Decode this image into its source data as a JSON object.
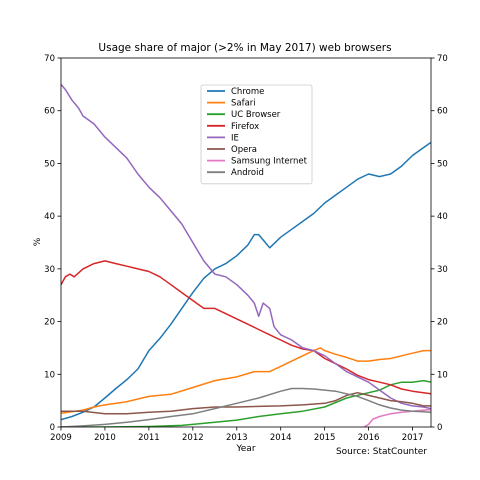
{
  "chart_data": {
    "type": "line",
    "title": "Usage share of major (>2% in May 2017) web browsers",
    "xlabel": "Year",
    "ylabel": "%",
    "source": "Source: StatCounter",
    "xlim": [
      2009.0,
      2017.42
    ],
    "ylim": [
      0,
      70
    ],
    "x_ticks": [
      2009,
      2010,
      2011,
      2012,
      2013,
      2014,
      2015,
      2016,
      2017
    ],
    "y_ticks": [
      0,
      10,
      20,
      30,
      40,
      50,
      60,
      70
    ],
    "secondary_y_axis": true,
    "grid": false,
    "legend_position": "upper center",
    "series": [
      {
        "name": "Chrome",
        "color": "#1f77b4",
        "points": [
          [
            2009.0,
            1.4
          ],
          [
            2009.25,
            2.0
          ],
          [
            2009.5,
            2.8
          ],
          [
            2009.75,
            3.8
          ],
          [
            2010.0,
            5.5
          ],
          [
            2010.25,
            7.3
          ],
          [
            2010.5,
            9.0
          ],
          [
            2010.75,
            11.0
          ],
          [
            2011.0,
            14.5
          ],
          [
            2011.25,
            16.8
          ],
          [
            2011.5,
            19.5
          ],
          [
            2011.75,
            22.5
          ],
          [
            2012.0,
            25.5
          ],
          [
            2012.25,
            28.2
          ],
          [
            2012.5,
            30.0
          ],
          [
            2012.75,
            31.0
          ],
          [
            2013.0,
            32.5
          ],
          [
            2013.25,
            34.5
          ],
          [
            2013.4,
            36.5
          ],
          [
            2013.5,
            36.5
          ],
          [
            2013.6,
            35.5
          ],
          [
            2013.75,
            34.0
          ],
          [
            2014.0,
            36.0
          ],
          [
            2014.25,
            37.5
          ],
          [
            2014.5,
            39.0
          ],
          [
            2014.75,
            40.5
          ],
          [
            2015.0,
            42.5
          ],
          [
            2015.25,
            44.0
          ],
          [
            2015.5,
            45.5
          ],
          [
            2015.75,
            47.0
          ],
          [
            2016.0,
            48.0
          ],
          [
            2016.25,
            47.5
          ],
          [
            2016.5,
            48.0
          ],
          [
            2016.75,
            49.5
          ],
          [
            2017.0,
            51.5
          ],
          [
            2017.25,
            53.0
          ],
          [
            2017.42,
            54.0
          ]
        ]
      },
      {
        "name": "Safari",
        "color": "#ff7f0e",
        "points": [
          [
            2009.0,
            2.6
          ],
          [
            2009.5,
            3.2
          ],
          [
            2009.75,
            3.8
          ],
          [
            2010.0,
            4.2
          ],
          [
            2010.5,
            4.8
          ],
          [
            2011.0,
            5.8
          ],
          [
            2011.5,
            6.2
          ],
          [
            2012.0,
            7.5
          ],
          [
            2012.5,
            8.8
          ],
          [
            2013.0,
            9.5
          ],
          [
            2013.4,
            10.5
          ],
          [
            2013.75,
            10.5
          ],
          [
            2014.0,
            11.5
          ],
          [
            2014.25,
            12.5
          ],
          [
            2014.5,
            13.5
          ],
          [
            2014.75,
            14.5
          ],
          [
            2014.9,
            15.0
          ],
          [
            2015.0,
            14.5
          ],
          [
            2015.25,
            13.8
          ],
          [
            2015.5,
            13.2
          ],
          [
            2015.75,
            12.5
          ],
          [
            2016.0,
            12.5
          ],
          [
            2016.25,
            12.8
          ],
          [
            2016.5,
            13.0
          ],
          [
            2016.75,
            13.5
          ],
          [
            2017.0,
            14.0
          ],
          [
            2017.25,
            14.5
          ],
          [
            2017.42,
            14.5
          ]
        ]
      },
      {
        "name": "UC Browser",
        "color": "#2ca02c",
        "points": [
          [
            2009.0,
            0.0
          ],
          [
            2010.0,
            0.0
          ],
          [
            2011.0,
            0.1
          ],
          [
            2011.75,
            0.3
          ],
          [
            2012.0,
            0.5
          ],
          [
            2012.5,
            0.9
          ],
          [
            2013.0,
            1.3
          ],
          [
            2013.5,
            2.0
          ],
          [
            2014.0,
            2.5
          ],
          [
            2014.5,
            3.0
          ],
          [
            2015.0,
            3.8
          ],
          [
            2015.5,
            5.5
          ],
          [
            2016.0,
            6.5
          ],
          [
            2016.25,
            7.0
          ],
          [
            2016.5,
            8.0
          ],
          [
            2016.75,
            8.5
          ],
          [
            2017.0,
            8.5
          ],
          [
            2017.25,
            8.8
          ],
          [
            2017.42,
            8.5
          ]
        ]
      },
      {
        "name": "Firefox",
        "color": "#d62728",
        "points": [
          [
            2009.0,
            27.0
          ],
          [
            2009.1,
            28.5
          ],
          [
            2009.2,
            29.0
          ],
          [
            2009.3,
            28.5
          ],
          [
            2009.5,
            30.0
          ],
          [
            2009.75,
            31.0
          ],
          [
            2010.0,
            31.5
          ],
          [
            2010.25,
            31.0
          ],
          [
            2010.5,
            30.5
          ],
          [
            2010.75,
            30.0
          ],
          [
            2011.0,
            29.5
          ],
          [
            2011.25,
            28.5
          ],
          [
            2011.5,
            27.0
          ],
          [
            2011.75,
            25.5
          ],
          [
            2012.0,
            24.0
          ],
          [
            2012.25,
            22.5
          ],
          [
            2012.5,
            22.5
          ],
          [
            2012.75,
            21.5
          ],
          [
            2013.0,
            20.5
          ],
          [
            2013.25,
            19.5
          ],
          [
            2013.5,
            18.5
          ],
          [
            2013.75,
            17.5
          ],
          [
            2014.0,
            16.5
          ],
          [
            2014.25,
            15.5
          ],
          [
            2014.5,
            14.8
          ],
          [
            2014.75,
            14.5
          ],
          [
            2015.0,
            13.0
          ],
          [
            2015.25,
            12.0
          ],
          [
            2015.5,
            11.0
          ],
          [
            2015.75,
            9.8
          ],
          [
            2016.0,
            9.0
          ],
          [
            2016.25,
            8.5
          ],
          [
            2016.5,
            8.0
          ],
          [
            2016.75,
            7.2
          ],
          [
            2017.0,
            6.8
          ],
          [
            2017.25,
            6.5
          ],
          [
            2017.42,
            6.3
          ]
        ]
      },
      {
        "name": "IE",
        "color": "#9467bd",
        "points": [
          [
            2009.0,
            65.0
          ],
          [
            2009.1,
            64.0
          ],
          [
            2009.25,
            62.0
          ],
          [
            2009.4,
            60.5
          ],
          [
            2009.5,
            59.0
          ],
          [
            2009.75,
            57.5
          ],
          [
            2010.0,
            55.0
          ],
          [
            2010.25,
            53.0
          ],
          [
            2010.5,
            51.0
          ],
          [
            2010.75,
            48.0
          ],
          [
            2011.0,
            45.5
          ],
          [
            2011.25,
            43.5
          ],
          [
            2011.5,
            41.0
          ],
          [
            2011.75,
            38.5
          ],
          [
            2012.0,
            35.0
          ],
          [
            2012.25,
            31.5
          ],
          [
            2012.5,
            29.0
          ],
          [
            2012.75,
            28.5
          ],
          [
            2013.0,
            27.0
          ],
          [
            2013.25,
            25.0
          ],
          [
            2013.4,
            23.5
          ],
          [
            2013.5,
            21.0
          ],
          [
            2013.6,
            23.5
          ],
          [
            2013.75,
            22.5
          ],
          [
            2013.85,
            19.0
          ],
          [
            2014.0,
            17.5
          ],
          [
            2014.25,
            16.5
          ],
          [
            2014.5,
            15.0
          ],
          [
            2014.75,
            14.5
          ],
          [
            2015.0,
            13.5
          ],
          [
            2015.25,
            12.0
          ],
          [
            2015.5,
            10.5
          ],
          [
            2015.75,
            9.5
          ],
          [
            2016.0,
            8.5
          ],
          [
            2016.25,
            7.0
          ],
          [
            2016.5,
            5.5
          ],
          [
            2016.75,
            4.5
          ],
          [
            2017.0,
            4.0
          ],
          [
            2017.25,
            3.8
          ],
          [
            2017.42,
            3.5
          ]
        ]
      },
      {
        "name": "Opera",
        "color": "#8c564b",
        "points": [
          [
            2009.0,
            3.0
          ],
          [
            2009.5,
            3.0
          ],
          [
            2010.0,
            2.5
          ],
          [
            2010.5,
            2.5
          ],
          [
            2011.0,
            2.8
          ],
          [
            2011.5,
            3.0
          ],
          [
            2012.0,
            3.5
          ],
          [
            2012.5,
            3.8
          ],
          [
            2013.0,
            3.8
          ],
          [
            2013.5,
            3.9
          ],
          [
            2014.0,
            4.0
          ],
          [
            2014.5,
            4.2
          ],
          [
            2015.0,
            4.5
          ],
          [
            2015.25,
            5.0
          ],
          [
            2015.5,
            6.0
          ],
          [
            2015.75,
            6.5
          ],
          [
            2016.0,
            6.0
          ],
          [
            2016.25,
            5.5
          ],
          [
            2016.5,
            5.0
          ],
          [
            2016.75,
            4.8
          ],
          [
            2017.0,
            4.5
          ],
          [
            2017.25,
            4.0
          ],
          [
            2017.42,
            4.0
          ]
        ]
      },
      {
        "name": "Samsung Internet",
        "color": "#e377c2",
        "points": [
          [
            2015.9,
            0.0
          ],
          [
            2016.0,
            0.5
          ],
          [
            2016.1,
            1.5
          ],
          [
            2016.25,
            2.0
          ],
          [
            2016.5,
            2.5
          ],
          [
            2016.75,
            2.8
          ],
          [
            2017.0,
            3.0
          ],
          [
            2017.25,
            3.2
          ],
          [
            2017.42,
            3.3
          ]
        ]
      },
      {
        "name": "Android",
        "color": "#7f7f7f",
        "points": [
          [
            2009.0,
            0.0
          ],
          [
            2009.5,
            0.2
          ],
          [
            2010.0,
            0.5
          ],
          [
            2010.5,
            0.9
          ],
          [
            2011.0,
            1.4
          ],
          [
            2011.5,
            2.0
          ],
          [
            2012.0,
            2.5
          ],
          [
            2012.5,
            3.5
          ],
          [
            2013.0,
            4.5
          ],
          [
            2013.5,
            5.5
          ],
          [
            2014.0,
            6.8
          ],
          [
            2014.25,
            7.3
          ],
          [
            2014.5,
            7.3
          ],
          [
            2014.75,
            7.2
          ],
          [
            2015.0,
            7.0
          ],
          [
            2015.25,
            6.8
          ],
          [
            2015.5,
            6.3
          ],
          [
            2015.75,
            5.8
          ],
          [
            2016.0,
            5.0
          ],
          [
            2016.25,
            4.2
          ],
          [
            2016.5,
            3.6
          ],
          [
            2016.75,
            3.2
          ],
          [
            2017.0,
            3.0
          ],
          [
            2017.25,
            2.9
          ],
          [
            2017.42,
            2.8
          ]
        ]
      }
    ]
  }
}
